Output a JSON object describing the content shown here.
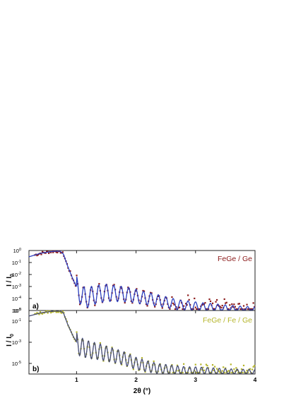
{
  "chart_data": [
    {
      "type": "scatter",
      "panel_label": "a)",
      "annotation": "FeGe / Ge",
      "ylabel": "I / I",
      "ylabel_sub": "0",
      "yscale": "log",
      "xlim": [
        0.2,
        4.0
      ],
      "ylim": [
        1e-05,
        1
      ],
      "yticks": [
        {
          "base": "10",
          "exp": "0"
        },
        {
          "base": "10",
          "exp": "-1"
        },
        {
          "base": "10",
          "exp": "-2"
        },
        {
          "base": "10",
          "exp": "-3"
        },
        {
          "base": "10",
          "exp": "-4"
        },
        {
          "base": "10",
          "exp": "-5"
        }
      ],
      "series": [
        {
          "role": "measured",
          "color": "#8b1a1a"
        },
        {
          "role": "fit",
          "color": "#2b3fbf"
        }
      ],
      "profile": {
        "x": [
          0.2,
          0.4,
          0.6,
          0.72,
          0.78,
          0.85,
          0.95,
          1.05,
          1.15,
          1.3,
          1.5,
          1.7,
          1.9,
          2.1,
          2.3,
          2.5,
          2.7,
          2.9,
          3.1,
          3.3,
          3.5,
          3.7,
          3.9,
          4.0
        ],
        "y": [
          0.3,
          0.6,
          0.85,
          0.9,
          0.5,
          0.05,
          0.003,
          0.0003,
          0.0001,
          0.0002,
          0.0003,
          0.00025,
          0.0002,
          0.00012,
          8e-05,
          5e-05,
          3e-05,
          2.5e-05,
          2e-05,
          1.8e-05,
          1.5e-05,
          1.3e-05,
          1.2e-05,
          1.2e-05
        ]
      },
      "fringe_period": 0.125,
      "fringe_start": 1.0
    },
    {
      "type": "scatter",
      "panel_label": "b)",
      "annotation": "FeGe / Fe / Ge",
      "ylabel": "I / I",
      "ylabel_sub": "0",
      "xlabel": "2θ (°)",
      "xticks": [
        "1",
        "2",
        "3",
        "4"
      ],
      "yscale": "log",
      "xlim": [
        0.2,
        4.0
      ],
      "ylim": [
        1e-06,
        1
      ],
      "yticks": [
        {
          "base": "10",
          "exp": "0"
        },
        {
          "base": "10",
          "exp": "-1"
        },
        {
          "base": "10",
          "exp": "-3"
        },
        {
          "base": "10",
          "exp": "-5"
        }
      ],
      "series": [
        {
          "role": "measured",
          "color": "#b5b52a"
        },
        {
          "role": "fit",
          "color": "#2b3fbf"
        },
        {
          "role": "fit",
          "color": "#555555"
        }
      ],
      "profile": {
        "x": [
          0.2,
          0.4,
          0.6,
          0.72,
          0.78,
          0.85,
          0.95,
          1.05,
          1.2,
          1.4,
          1.6,
          1.8,
          2.0,
          2.2,
          2.4,
          2.6,
          2.8,
          3.0,
          3.3,
          3.6,
          4.0
        ],
        "y": [
          0.3,
          0.6,
          0.85,
          0.9,
          0.6,
          0.05,
          0.003,
          0.0004,
          0.0002,
          0.00012,
          6e-05,
          3e-05,
          1e-05,
          5e-06,
          3e-06,
          2.5e-06,
          2e-06,
          2e-06,
          1.8e-06,
          1.6e-06,
          1.5e-06
        ]
      },
      "fringe_period": 0.1,
      "fringe_start": 1.0
    }
  ]
}
